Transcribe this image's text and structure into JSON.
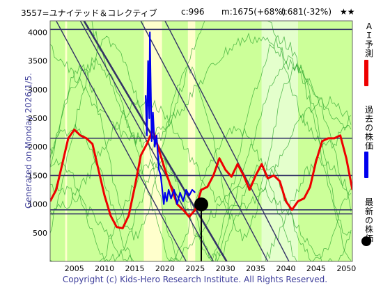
{
  "header": {
    "title": "3557=ユナイテッド＆コレクティブ",
    "close": "c:996",
    "max": "m:1675(+68%)",
    "min": "t:681(-32%)",
    "rating": "★★"
  },
  "generated": "Generated on Monday 2026/1/5.",
  "footer": "Copyright (c) Kids-Hero Research Institute. All Rights Reserved.",
  "legend": {
    "ai": "ＡＩ予測",
    "past": "過去の株価",
    "latest": "最新の株価"
  },
  "colors": {
    "ai": "#ee0000",
    "past": "#0000ee",
    "latest": "#000000",
    "band_green": "#ccff99",
    "band_yellow": "#ffffcc",
    "gridline": "#333366",
    "trend": "#333366"
  },
  "chart_data": {
    "type": "line",
    "xlim": [
      2001,
      2051
    ],
    "ylim": [
      0,
      4200
    ],
    "x_ticks": [
      2005,
      2010,
      2015,
      2020,
      2025,
      2030,
      2035,
      2040,
      2045,
      2050
    ],
    "y_ticks": [
      500,
      1000,
      1500,
      2000,
      2500,
      3000,
      3500,
      4000
    ],
    "hlines": [
      4050,
      2150,
      1500,
      900,
      830
    ],
    "latest_point": {
      "x": 2026.0,
      "y": 996
    },
    "latest_vline": {
      "x": 2026.0
    },
    "trendlines": [
      {
        "x": [
          2006.6,
          2030.2
        ],
        "y": [
          4200,
          0
        ]
      },
      {
        "x": [
          2006.0,
          2028.0
        ],
        "y": [
          4200,
          0
        ]
      },
      {
        "x": [
          2002.0,
          2023.5
        ],
        "y": [
          4200,
          0
        ]
      },
      {
        "x": [
          2016.0,
          2037.0
        ],
        "y": [
          4200,
          0
        ]
      },
      {
        "x": [
          2020.0,
          2040.5
        ],
        "y": [
          4200,
          0
        ]
      }
    ],
    "bands": [
      {
        "x0": 2001,
        "x1": 2003.5,
        "color": "green"
      },
      {
        "x0": 2003.5,
        "x1": 2003.8,
        "color": "yellow"
      },
      {
        "x0": 2003.8,
        "x1": 2016.5,
        "color": "green"
      },
      {
        "x0": 2016.5,
        "x1": 2019.5,
        "color": "yellow"
      },
      {
        "x0": 2019.5,
        "x1": 2023.8,
        "color": "green"
      },
      {
        "x0": 2023.8,
        "x1": 2025.0,
        "color": "yellow"
      },
      {
        "x0": 2025.0,
        "x1": 2036.0,
        "color": "green"
      },
      {
        "x0": 2036.0,
        "x1": 2042.0,
        "color": "green_light"
      },
      {
        "x0": 2042.0,
        "x1": 2051,
        "color": "green"
      }
    ],
    "series": [
      {
        "name": "ＡＩ予測",
        "color": "red",
        "x": [
          2001,
          2002,
          2003,
          2004,
          2005,
          2006,
          2007,
          2008,
          2009,
          2010,
          2011,
          2012,
          2013,
          2014,
          2015,
          2016,
          2017,
          2018,
          2019,
          2020,
          2021,
          2022,
          2023,
          2024,
          2025,
          2026,
          2027,
          2028,
          2029,
          2030,
          2031,
          2032,
          2033,
          2034,
          2035,
          2036,
          2037,
          2038,
          2039,
          2040,
          2041,
          2042,
          2043,
          2044,
          2045,
          2046,
          2047,
          2048,
          2049,
          2050,
          2051
        ],
        "y": [
          1050,
          1250,
          1700,
          2150,
          2300,
          2200,
          2150,
          2050,
          1600,
          1150,
          800,
          600,
          580,
          800,
          1300,
          1850,
          2050,
          2300,
          1950,
          1600,
          1300,
          1000,
          900,
          780,
          900,
          1250,
          1300,
          1500,
          1800,
          1600,
          1480,
          1700,
          1500,
          1250,
          1500,
          1700,
          1450,
          1500,
          1400,
          1050,
          900,
          1050,
          1100,
          1300,
          1750,
          2100,
          2150,
          2150,
          2200,
          1800,
          1250
        ]
      },
      {
        "name": "過去の株価",
        "color": "blue",
        "x": [
          2016.8,
          2017.0,
          2017.2,
          2017.4,
          2017.5,
          2017.6,
          2017.8,
          2018.0,
          2018.3,
          2018.6,
          2019.0,
          2019.3,
          2019.6,
          2019.8,
          2020.0,
          2020.3,
          2020.6,
          2021.0,
          2021.5,
          2022.0,
          2022.5,
          2023.0,
          2023.5,
          2024.0,
          2024.5,
          2025.0
        ],
        "y": [
          2900,
          2200,
          3500,
          2500,
          4000,
          3300,
          2100,
          2600,
          2000,
          2200,
          1600,
          1500,
          1200,
          1000,
          1200,
          1050,
          1250,
          1100,
          1250,
          1000,
          1200,
          1050,
          1250,
          1150,
          1250,
          1200
        ]
      }
    ]
  }
}
